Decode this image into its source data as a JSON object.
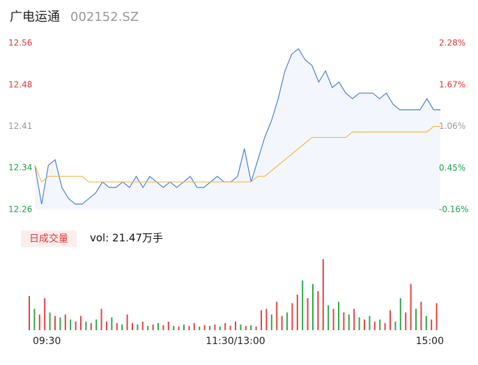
{
  "header": {
    "name": "广电运通",
    "code": "002152.SZ"
  },
  "chart_data": [
    {
      "type": "line",
      "x": [
        0,
        4,
        8,
        12,
        16,
        20,
        24,
        28,
        32,
        36,
        40,
        44,
        48,
        52,
        56,
        60,
        64,
        68,
        72,
        76,
        80,
        84,
        88,
        92,
        96,
        100,
        104,
        108,
        112,
        116,
        120,
        124,
        128,
        132,
        136,
        140,
        144,
        148,
        152,
        156,
        160,
        164,
        168,
        172,
        176,
        180,
        184,
        188,
        192,
        196,
        200,
        204,
        208,
        212,
        216,
        220,
        224,
        228,
        232,
        236,
        240
      ],
      "xlim": [
        0,
        240
      ],
      "ylim": [
        12.26,
        12.56
      ],
      "yticks": [
        12.56,
        {
          "value": 12.4845,
          "label": "12.48"
        },
        12.41,
        {
          "value": 12.3355,
          "label": "12.34"
        },
        12.26
      ],
      "y2lim": [
        -0.16,
        2.28
      ],
      "y2ticks": [
        {
          "value": 2.28,
          "label": "2.28%"
        },
        {
          "value": 1.67,
          "label": "1.67%"
        },
        {
          "value": 1.06,
          "label": "1.06%"
        },
        {
          "value": 0.45,
          "label": "0.45%"
        },
        {
          "value": -0.16,
          "label": "-0.16%"
        }
      ],
      "tick_colors": [
        "#e63434",
        "#e63434",
        "#999999",
        "#1aa34a",
        "#1aa34a"
      ],
      "series": [
        {
          "color": "#4a7fe0",
          "values": [
            12.34,
            12.27,
            12.34,
            12.35,
            12.3,
            12.28,
            12.27,
            12.27,
            12.28,
            12.29,
            12.31,
            12.3,
            12.3,
            12.31,
            12.3,
            12.32,
            12.3,
            12.32,
            12.31,
            12.3,
            12.31,
            12.3,
            12.31,
            12.32,
            12.3,
            12.3,
            12.31,
            12.32,
            12.31,
            12.31,
            12.32,
            12.37,
            12.31,
            12.35,
            12.39,
            12.42,
            12.46,
            12.51,
            12.54,
            12.55,
            12.53,
            12.52,
            12.49,
            12.51,
            12.48,
            12.49,
            12.47,
            12.46,
            12.47,
            12.47,
            12.47,
            12.46,
            12.47,
            12.45,
            12.44,
            12.44,
            12.44,
            12.44,
            12.46,
            12.44,
            12.44
          ]
        },
        {
          "color": "#f5b942",
          "values": [
            12.34,
            12.31,
            12.32,
            12.32,
            12.32,
            12.32,
            12.32,
            12.32,
            12.31,
            12.31,
            12.31,
            12.31,
            12.31,
            12.31,
            12.31,
            12.31,
            12.31,
            12.31,
            12.31,
            12.31,
            12.31,
            12.31,
            12.31,
            12.31,
            12.31,
            12.31,
            12.31,
            12.31,
            12.31,
            12.31,
            12.31,
            12.31,
            12.31,
            12.32,
            12.32,
            12.33,
            12.34,
            12.35,
            12.36,
            12.37,
            12.38,
            12.39,
            12.39,
            12.39,
            12.39,
            12.39,
            12.39,
            12.4,
            12.4,
            12.4,
            12.4,
            12.4,
            12.4,
            12.4,
            12.4,
            12.4,
            12.4,
            12.4,
            12.4,
            12.41,
            12.41
          ]
        }
      ]
    },
    {
      "type": "bar",
      "legend": "日成交量",
      "annotation": "vol: 21.47万手",
      "x": [
        0,
        3,
        6,
        9,
        12,
        15,
        18,
        21,
        24,
        27,
        30,
        33,
        36,
        39,
        42,
        45,
        48,
        51,
        54,
        57,
        60,
        63,
        66,
        69,
        72,
        75,
        78,
        81,
        84,
        87,
        90,
        93,
        96,
        99,
        102,
        105,
        108,
        111,
        114,
        117,
        120,
        123,
        126,
        129,
        132,
        135,
        138,
        141,
        144,
        147,
        150,
        153,
        156,
        159,
        162,
        165,
        168,
        171,
        174,
        177,
        180,
        183,
        186,
        189,
        192,
        195,
        198,
        201,
        204,
        207,
        210,
        213,
        216,
        219,
        222,
        225,
        228,
        231,
        234,
        237
      ],
      "xlim": [
        0,
        240
      ],
      "xticks": [
        {
          "value": 0,
          "label": "09:30"
        },
        {
          "value": 120,
          "label": "11:30/13:00"
        },
        {
          "value": 240,
          "label": "15:00"
        }
      ],
      "ylim": [
        0,
        100
      ],
      "values": [
        48,
        30,
        22,
        45,
        25,
        20,
        18,
        22,
        15,
        12,
        20,
        12,
        10,
        15,
        30,
        12,
        18,
        10,
        8,
        22,
        10,
        8,
        12,
        6,
        8,
        10,
        7,
        12,
        6,
        5,
        8,
        6,
        10,
        5,
        7,
        6,
        8,
        5,
        10,
        6,
        12,
        8,
        6,
        7,
        5,
        28,
        30,
        22,
        40,
        20,
        25,
        38,
        50,
        70,
        45,
        65,
        55,
        100,
        35,
        30,
        40,
        25,
        22,
        30,
        18,
        15,
        20,
        12,
        15,
        10,
        28,
        12,
        45,
        25,
        65,
        30,
        40,
        20,
        15,
        38
      ],
      "colors": [
        "#e84040",
        "#2ca84a",
        "#e84040",
        "#e84040",
        "#2ca84a",
        "#e84040",
        "#2ca84a",
        "#e84040",
        "#2ca84a",
        "#e84040",
        "#e84040",
        "#2ca84a",
        "#e84040",
        "#2ca84a",
        "#e84040",
        "#e84040",
        "#2ca84a",
        "#e84040",
        "#2ca84a",
        "#e84040",
        "#e84040",
        "#2ca84a",
        "#e84040",
        "#2ca84a",
        "#e84040",
        "#2ca84a",
        "#e84040",
        "#e84040",
        "#2ca84a",
        "#e84040",
        "#2ca84a",
        "#e84040",
        "#e84040",
        "#2ca84a",
        "#e84040",
        "#2ca84a",
        "#e84040",
        "#2ca84a",
        "#e84040",
        "#e84040",
        "#e84040",
        "#2ca84a",
        "#e84040",
        "#2ca84a",
        "#e84040",
        "#e84040",
        "#e84040",
        "#2ca84a",
        "#e84040",
        "#e84040",
        "#2ca84a",
        "#e84040",
        "#e84040",
        "#2ca84a",
        "#e84040",
        "#2ca84a",
        "#e84040",
        "#e84040",
        "#2ca84a",
        "#e84040",
        "#2ca84a",
        "#e84040",
        "#2ca84a",
        "#e84040",
        "#2ca84a",
        "#e84040",
        "#2ca84a",
        "#e84040",
        "#2ca84a",
        "#e84040",
        "#e84040",
        "#2ca84a",
        "#2ca84a",
        "#e84040",
        "#e84040",
        "#2ca84a",
        "#e84040",
        "#2ca84a",
        "#e84040",
        "#e84040"
      ]
    }
  ]
}
